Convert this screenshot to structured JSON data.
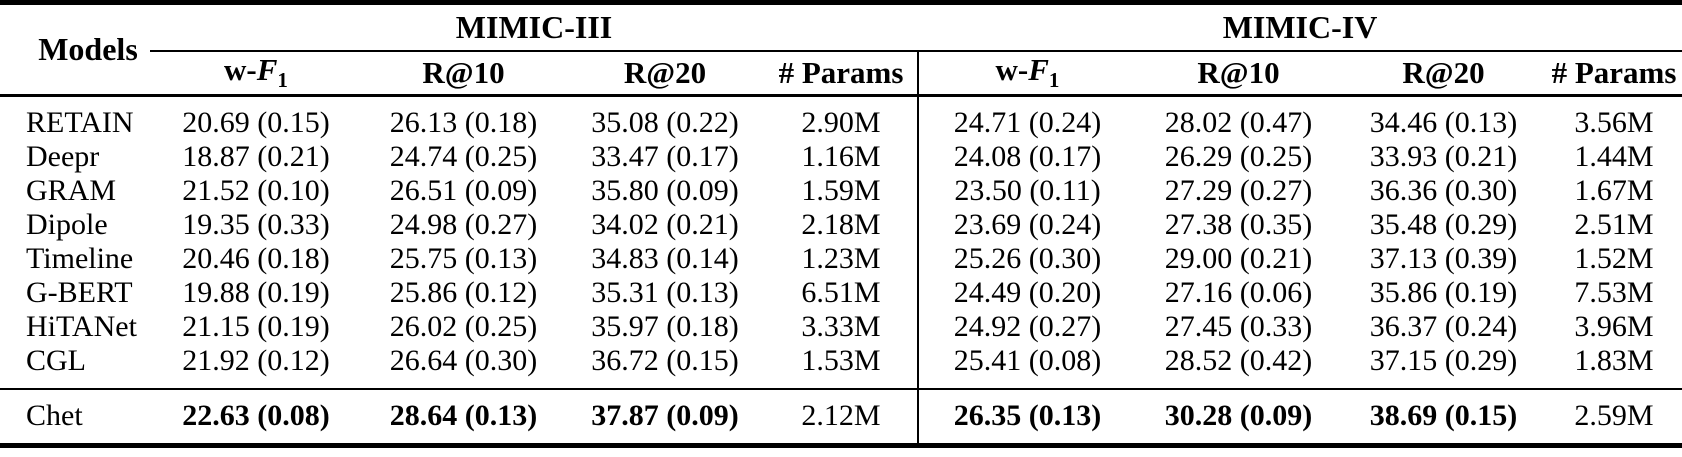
{
  "colors": {
    "text": "#000000",
    "background": "#ffffff",
    "rule": "#000000"
  },
  "table": {
    "models_header": "Models",
    "groups": [
      {
        "label": "MIMIC-III"
      },
      {
        "label": "MIMIC-IV"
      }
    ],
    "metrics": [
      {
        "prefix": "w-",
        "symbol": "F",
        "subscript": "1"
      },
      {
        "label": "R@10"
      },
      {
        "label": "R@20"
      },
      {
        "label": "# Params"
      }
    ],
    "rows": [
      {
        "model": "RETAIN",
        "values": [
          "20.69 (0.15)",
          "26.13 (0.18)",
          "35.08 (0.22)",
          "2.90M",
          "24.71 (0.24)",
          "28.02 (0.47)",
          "34.46 (0.13)",
          "3.56M"
        ]
      },
      {
        "model": "Deepr",
        "values": [
          "18.87 (0.21)",
          "24.74 (0.25)",
          "33.47 (0.17)",
          "1.16M",
          "24.08 (0.17)",
          "26.29 (0.25)",
          "33.93 (0.21)",
          "1.44M"
        ]
      },
      {
        "model": "GRAM",
        "values": [
          "21.52 (0.10)",
          "26.51 (0.09)",
          "35.80 (0.09)",
          "1.59M",
          "23.50 (0.11)",
          "27.29 (0.27)",
          "36.36 (0.30)",
          "1.67M"
        ]
      },
      {
        "model": "Dipole",
        "values": [
          "19.35 (0.33)",
          "24.98 (0.27)",
          "34.02 (0.21)",
          "2.18M",
          "23.69 (0.24)",
          "27.38 (0.35)",
          "35.48 (0.29)",
          "2.51M"
        ]
      },
      {
        "model": "Timeline",
        "values": [
          "20.46 (0.18)",
          "25.75 (0.13)",
          "34.83 (0.14)",
          "1.23M",
          "25.26 (0.30)",
          "29.00 (0.21)",
          "37.13 (0.39)",
          "1.52M"
        ]
      },
      {
        "model": "G-BERT",
        "values": [
          "19.88 (0.19)",
          "25.86 (0.12)",
          "35.31 (0.13)",
          "6.51M",
          "24.49 (0.20)",
          "27.16 (0.06)",
          "35.86 (0.19)",
          "7.53M"
        ]
      },
      {
        "model": "HiTANet",
        "values": [
          "21.15 (0.19)",
          "26.02 (0.25)",
          "35.97 (0.18)",
          "3.33M",
          "24.92 (0.27)",
          "27.45 (0.33)",
          "36.37 (0.24)",
          "3.96M"
        ]
      },
      {
        "model": "CGL",
        "values": [
          "21.92 (0.12)",
          "26.64 (0.30)",
          "36.72 (0.15)",
          "1.53M",
          "25.41 (0.08)",
          "28.52 (0.42)",
          "37.15 (0.29)",
          "1.83M"
        ]
      }
    ],
    "highlight_row": {
      "model": "Chet",
      "values": [
        "22.63 (0.08)",
        "28.64 (0.13)",
        "37.87 (0.09)",
        "2.12M",
        "26.35 (0.13)",
        "30.28 (0.09)",
        "38.69 (0.15)",
        "2.59M"
      ],
      "bold": [
        true,
        true,
        true,
        false,
        true,
        true,
        true,
        false
      ]
    }
  }
}
